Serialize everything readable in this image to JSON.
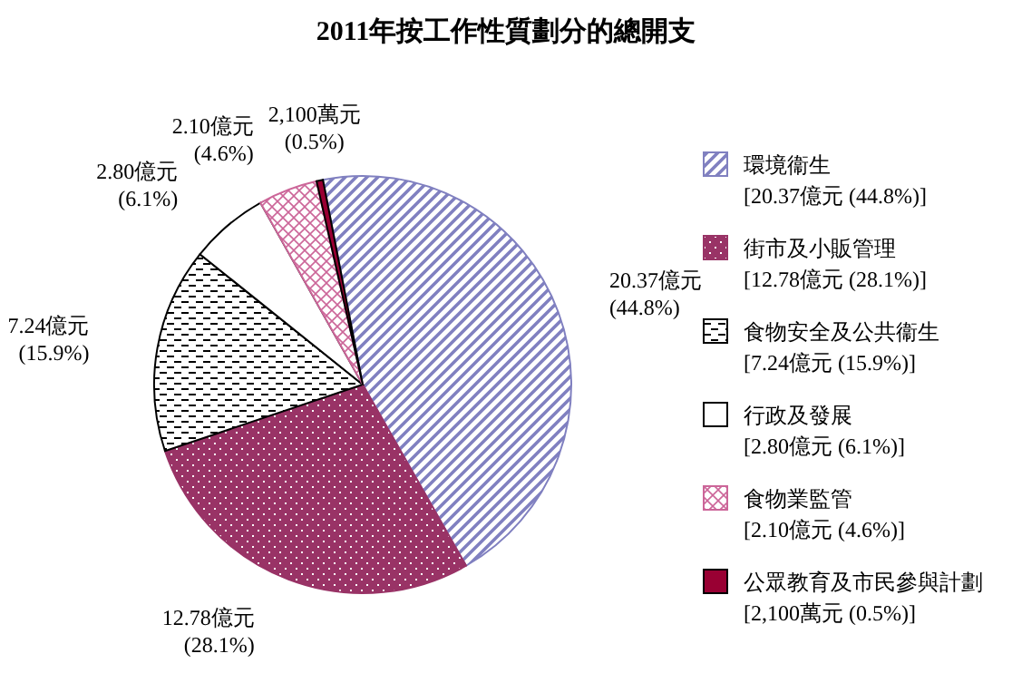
{
  "chart_data": {
    "type": "pie",
    "title": "2011年按工作性質劃分的總開支",
    "categories": [
      "環境衞生\n[20.37億元 (44.8%)]",
      "街市及小販管理\n[12.78億元 (28.1%)]",
      "食物安全及公共衞生\n[7.24億元 (15.9%)]",
      "行政及發展\n[2.80億元 (6.1%)]",
      "食物業監管\n[2.10億元 (4.6%)]",
      "公眾教育及市民參與計劃\n[2,100萬元 (0.5%)]"
    ],
    "values": [
      44.8,
      28.1,
      15.9,
      6.1,
      4.6,
      0.5
    ],
    "colors": [
      "#8080c0",
      "#993366",
      "#000000",
      "#ffffff",
      "#cc6699",
      "#990033"
    ],
    "value_labels": [
      "20.37億元\n(44.8%)",
      "12.78億元\n(28.1%)",
      "7.24億元\n(15.9%)",
      "2.80億元\n(6.1%)",
      "2.10億元\n(4.6%)",
      "2,100萬元\n(0.5%)"
    ],
    "legend": "right"
  }
}
